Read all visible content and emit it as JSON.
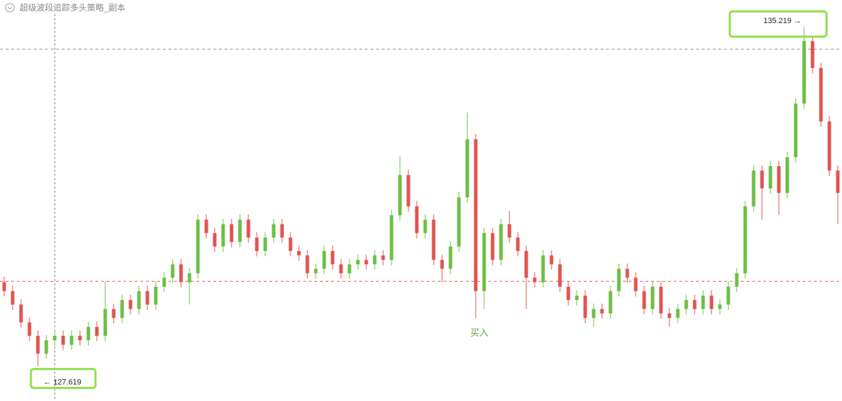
{
  "chart_data": {
    "type": "candlestick",
    "title": "超级波段追踪多头策略_副本",
    "up_color": "#6cbf44",
    "down_color": "#e2534f",
    "ylim": [
      126.84,
      135.82
    ],
    "open": [
      129.5,
      129.3,
      129.0,
      128.6,
      128.3,
      127.9,
      128.2,
      128.3,
      128.1,
      128.3,
      128.2,
      128.5,
      128.3,
      128.9,
      128.7,
      129.1,
      128.9,
      129.3,
      129.0,
      129.4,
      129.6,
      129.9,
      129.5,
      129.7,
      130.9,
      130.6,
      130.3,
      130.8,
      130.4,
      130.9,
      130.5,
      130.2,
      130.5,
      130.8,
      130.5,
      130.2,
      130.1,
      129.7,
      129.8,
      130.2,
      129.9,
      129.7,
      129.9,
      130.0,
      129.9,
      130.1,
      130.0,
      131.0,
      131.9,
      131.2,
      130.6,
      130.9,
      130.0,
      129.8,
      130.3,
      131.4,
      132.7,
      129.3,
      130.6,
      130.0,
      130.8,
      130.5,
      130.2,
      129.6,
      129.5,
      130.1,
      129.9,
      129.4,
      129.1,
      129.2,
      128.7,
      128.9,
      128.8,
      129.3,
      129.8,
      129.6,
      129.3,
      128.9,
      129.4,
      128.8,
      128.7,
      128.9,
      129.1,
      128.9,
      129.2,
      128.9,
      129.0,
      129.4,
      129.7,
      131.2,
      132.0,
      131.6,
      132.1,
      131.5,
      132.3,
      133.5,
      134.9,
      134.3,
      133.1,
      132.0
    ],
    "high": [
      129.62,
      129.42,
      129.12,
      128.72,
      128.42,
      128.32,
      128.42,
      128.42,
      128.42,
      128.42,
      128.62,
      128.62,
      129.52,
      129.02,
      129.22,
      129.22,
      129.42,
      129.42,
      129.52,
      129.72,
      130.02,
      130.02,
      129.82,
      131.02,
      131.02,
      130.72,
      130.92,
      130.92,
      131.02,
      131.02,
      130.62,
      130.62,
      130.92,
      130.92,
      130.62,
      130.32,
      130.22,
      129.92,
      130.32,
      130.32,
      130.02,
      130.02,
      130.12,
      130.12,
      130.22,
      130.22,
      131.12,
      132.32,
      132.02,
      131.32,
      131.02,
      131.02,
      130.12,
      130.42,
      131.52,
      133.3,
      132.82,
      130.72,
      130.72,
      130.92,
      131.1,
      130.62,
      130.32,
      129.72,
      130.22,
      130.22,
      130.02,
      129.52,
      129.32,
      129.32,
      129.02,
      129.02,
      129.42,
      129.92,
      129.92,
      129.72,
      129.42,
      129.52,
      129.52,
      128.92,
      129.02,
      129.22,
      129.22,
      129.32,
      129.32,
      129.12,
      129.52,
      129.82,
      131.32,
      132.12,
      132.12,
      132.22,
      132.22,
      132.42,
      133.62,
      135.219,
      135.02,
      134.42,
      133.22,
      132.12
    ],
    "low": [
      129.18,
      128.88,
      128.48,
      128.18,
      127.619,
      127.78,
      128.08,
      127.98,
      127.98,
      128.08,
      128.08,
      128.18,
      128.18,
      128.58,
      128.58,
      128.78,
      128.78,
      128.88,
      128.88,
      129.28,
      129.48,
      129.38,
      129.0,
      129.58,
      130.48,
      130.18,
      130.18,
      130.28,
      130.28,
      130.38,
      130.08,
      130.08,
      130.38,
      130.38,
      130.08,
      129.98,
      129.58,
      129.58,
      129.68,
      129.78,
      129.58,
      129.58,
      129.78,
      129.78,
      129.78,
      129.88,
      129.88,
      130.88,
      131.08,
      130.48,
      130.48,
      129.88,
      129.5,
      129.68,
      130.18,
      131.28,
      128.7,
      128.9,
      129.88,
      129.88,
      130.38,
      130.08,
      128.9,
      129.38,
      129.38,
      129.78,
      129.28,
      128.98,
      128.98,
      128.58,
      128.5,
      128.68,
      128.68,
      129.18,
      129.48,
      129.18,
      128.78,
      128.78,
      128.68,
      128.5,
      128.58,
      128.78,
      128.78,
      128.78,
      128.78,
      128.78,
      128.88,
      129.28,
      129.58,
      131.08,
      130.9,
      131.48,
      131.0,
      131.38,
      132.18,
      133.38,
      134.18,
      132.98,
      131.88,
      130.8
    ],
    "close": [
      129.3,
      129.0,
      128.6,
      128.3,
      127.9,
      128.2,
      128.3,
      128.1,
      128.3,
      128.2,
      128.5,
      128.3,
      128.9,
      128.7,
      129.1,
      128.9,
      129.3,
      129.0,
      129.4,
      129.6,
      129.9,
      129.5,
      129.7,
      130.9,
      130.6,
      130.3,
      130.8,
      130.4,
      130.9,
      130.5,
      130.2,
      130.5,
      130.8,
      130.5,
      130.2,
      130.1,
      129.7,
      129.8,
      130.2,
      129.9,
      129.7,
      129.9,
      130.0,
      129.9,
      130.1,
      130.0,
      131.0,
      131.9,
      131.2,
      130.6,
      130.9,
      130.0,
      129.8,
      130.3,
      131.4,
      132.7,
      129.3,
      130.6,
      130.0,
      130.8,
      130.5,
      130.2,
      129.6,
      129.5,
      130.1,
      129.9,
      129.4,
      129.1,
      129.2,
      128.7,
      128.9,
      128.8,
      129.3,
      129.8,
      129.6,
      129.3,
      128.9,
      129.4,
      128.8,
      128.7,
      128.9,
      129.1,
      128.9,
      129.2,
      128.9,
      129.0,
      129.4,
      129.7,
      131.2,
      132.0,
      131.6,
      132.1,
      131.5,
      132.3,
      133.5,
      134.9,
      134.3,
      133.1,
      132.0,
      131.5
    ],
    "annotations": [
      {
        "value": 135.219,
        "label": "135.219 →"
      },
      {
        "value": 127.619,
        "label": "← 127.619"
      }
    ],
    "signal": {
      "label": "买入",
      "color": "#5aa832"
    },
    "reference_lines": [
      {
        "value": 134.72,
        "color": "#888888"
      },
      {
        "value": 129.52,
        "color": "#e2534f"
      }
    ]
  }
}
